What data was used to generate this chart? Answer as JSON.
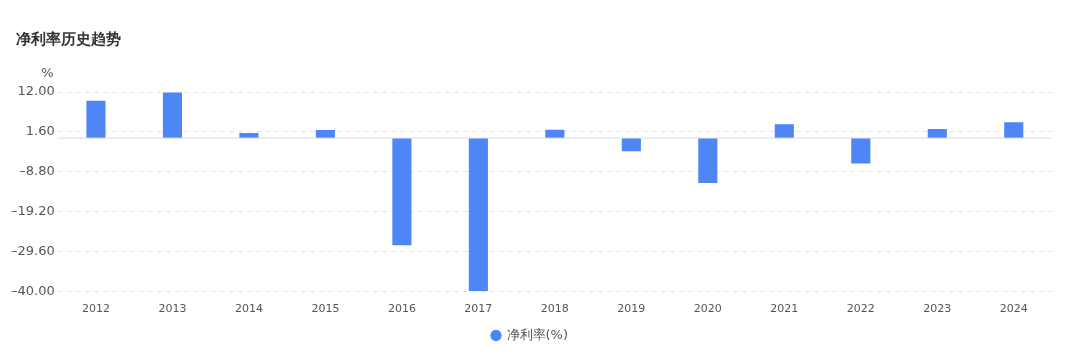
{
  "chart_data": {
    "type": "bar",
    "title": "净利率历史趋势",
    "ylabel": "%",
    "categories": [
      "2012",
      "2013",
      "2014",
      "2015",
      "2016",
      "2017",
      "2018",
      "2019",
      "2020",
      "2021",
      "2022",
      "2023",
      "2024"
    ],
    "series": [
      {
        "name": "净利率(%)",
        "color": "#4e86f5",
        "values": [
          9.7,
          11.9,
          1.3,
          2.1,
          -27.9,
          -39.8,
          2.2,
          -3.4,
          -11.7,
          3.6,
          -6.6,
          2.4,
          4.1
        ]
      }
    ],
    "ylim": [
      -40,
      12
    ],
    "yticks": [
      {
        "value": -40,
        "label": "–40.00"
      },
      {
        "value": -29.6,
        "label": "–29.60"
      },
      {
        "value": -19.2,
        "label": "–19.20"
      },
      {
        "value": -8.8,
        "label": "–8.80"
      },
      {
        "value": 1.6,
        "label": "1.60"
      },
      {
        "value": 12,
        "label": "12.00"
      }
    ],
    "grid": "y",
    "legend": "bottom"
  }
}
